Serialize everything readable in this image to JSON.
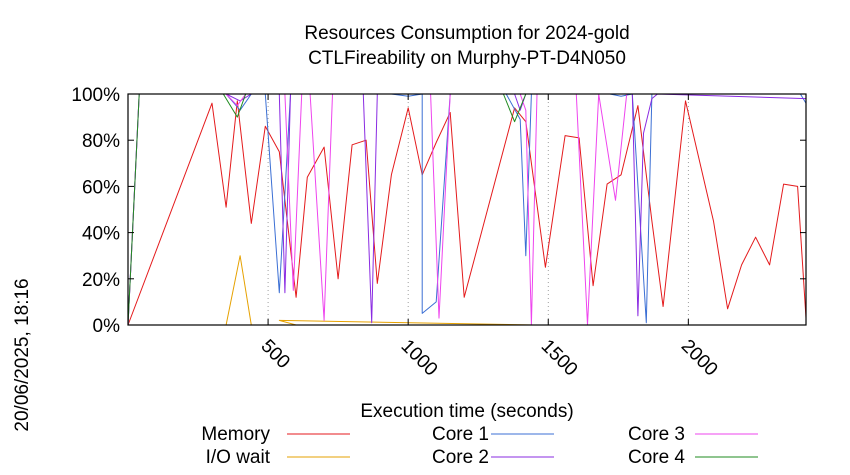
{
  "chart_data": {
    "type": "line",
    "title": "Resources Consumption for 2024-gold",
    "subtitle": "CTLFireability on Murphy-PT-D4N050",
    "xlabel": "Execution time (seconds)",
    "ylabel": "",
    "side_label": "20/06/2025, 18:16",
    "xlim": [
      0,
      2420
    ],
    "ylim": [
      0,
      100
    ],
    "x_ticks": [
      500,
      1000,
      1500,
      2000
    ],
    "y_ticks": [
      0,
      20,
      40,
      60,
      80,
      100
    ],
    "y_tick_labels": [
      "0%",
      "20%",
      "40%",
      "60%",
      "80%",
      "100%"
    ],
    "grid": "vertical dotted at x ticks",
    "legend_position": "bottom",
    "series": [
      {
        "name": "Memory",
        "color": "#e41a1c",
        "points": [
          [
            0,
            0
          ],
          [
            300,
            96
          ],
          [
            350,
            51
          ],
          [
            390,
            97
          ],
          [
            440,
            44
          ],
          [
            490,
            86
          ],
          [
            540,
            75
          ],
          [
            600,
            12
          ],
          [
            640,
            64
          ],
          [
            700,
            77
          ],
          [
            750,
            20
          ],
          [
            800,
            78
          ],
          [
            850,
            80
          ],
          [
            890,
            18
          ],
          [
            940,
            65
          ],
          [
            1000,
            94
          ],
          [
            1050,
            65
          ],
          [
            1100,
            79
          ],
          [
            1150,
            92
          ],
          [
            1200,
            12
          ],
          [
            1380,
            94
          ],
          [
            1420,
            88
          ],
          [
            1490,
            25
          ],
          [
            1560,
            82
          ],
          [
            1610,
            81
          ],
          [
            1660,
            17
          ],
          [
            1710,
            61
          ],
          [
            1760,
            65
          ],
          [
            1820,
            95
          ],
          [
            1870,
            45
          ],
          [
            1910,
            8
          ],
          [
            1990,
            97
          ],
          [
            2090,
            45
          ],
          [
            2140,
            7
          ],
          [
            2190,
            26
          ],
          [
            2240,
            38
          ],
          [
            2290,
            26
          ],
          [
            2340,
            61
          ],
          [
            2390,
            60
          ],
          [
            2420,
            3
          ]
        ]
      },
      {
        "name": "I/O wait",
        "color": "#e6a100",
        "points": [
          [
            0,
            0
          ],
          [
            350,
            0
          ],
          [
            400,
            30
          ],
          [
            440,
            0
          ],
          [
            1450,
            0
          ],
          [
            540,
            2
          ],
          [
            600,
            0
          ]
        ]
      },
      {
        "name": "Core 1",
        "color": "#3b6fd4",
        "points": [
          [
            0,
            0
          ],
          [
            40,
            100
          ],
          [
            350,
            100
          ],
          [
            400,
            93
          ],
          [
            440,
            100
          ],
          [
            490,
            100
          ],
          [
            540,
            14
          ],
          [
            580,
            100
          ],
          [
            940,
            100
          ],
          [
            1000,
            99
          ],
          [
            1050,
            100
          ],
          [
            1050,
            5
          ],
          [
            1100,
            10
          ],
          [
            1150,
            100
          ],
          [
            1350,
            100
          ],
          [
            1400,
            89
          ],
          [
            1420,
            30
          ],
          [
            1440,
            100
          ],
          [
            1720,
            100
          ],
          [
            1760,
            99
          ],
          [
            1800,
            100
          ],
          [
            1850,
            1
          ],
          [
            1870,
            100
          ],
          [
            2400,
            100
          ],
          [
            2420,
            96
          ]
        ]
      },
      {
        "name": "Core 2",
        "color": "#8a2be2",
        "points": [
          [
            0,
            0
          ],
          [
            40,
            100
          ],
          [
            350,
            100
          ],
          [
            400,
            97
          ],
          [
            440,
            100
          ],
          [
            540,
            100
          ],
          [
            560,
            14
          ],
          [
            580,
            100
          ],
          [
            840,
            100
          ],
          [
            870,
            1
          ],
          [
            890,
            100
          ],
          [
            1380,
            100
          ],
          [
            1400,
            93
          ],
          [
            1420,
            100
          ],
          [
            1800,
            100
          ],
          [
            1820,
            4
          ],
          [
            1840,
            83
          ],
          [
            1870,
            98
          ],
          [
            1890,
            100
          ],
          [
            2420,
            98
          ]
        ]
      },
      {
        "name": "Core 3",
        "color": "#ee44ee",
        "points": [
          [
            0,
            0
          ],
          [
            40,
            100
          ],
          [
            350,
            100
          ],
          [
            390,
            95
          ],
          [
            420,
            100
          ],
          [
            500,
            100
          ],
          [
            560,
            100
          ],
          [
            590,
            15
          ],
          [
            620,
            100
          ],
          [
            650,
            100
          ],
          [
            700,
            2
          ],
          [
            730,
            100
          ],
          [
            1080,
            100
          ],
          [
            1110,
            3
          ],
          [
            1150,
            100
          ],
          [
            1400,
            100
          ],
          [
            1420,
            93
          ],
          [
            1440,
            0
          ],
          [
            1460,
            100
          ],
          [
            1600,
            100
          ],
          [
            1640,
            0
          ],
          [
            1680,
            100
          ],
          [
            1740,
            54
          ],
          [
            1780,
            100
          ],
          [
            2420,
            100
          ]
        ]
      },
      {
        "name": "Core 4",
        "color": "#1f8b1f",
        "points": [
          [
            0,
            0
          ],
          [
            40,
            100
          ],
          [
            340,
            100
          ],
          [
            390,
            90
          ],
          [
            420,
            100
          ],
          [
            1340,
            100
          ],
          [
            1380,
            88
          ],
          [
            1420,
            100
          ],
          [
            2420,
            100
          ]
        ]
      }
    ]
  }
}
